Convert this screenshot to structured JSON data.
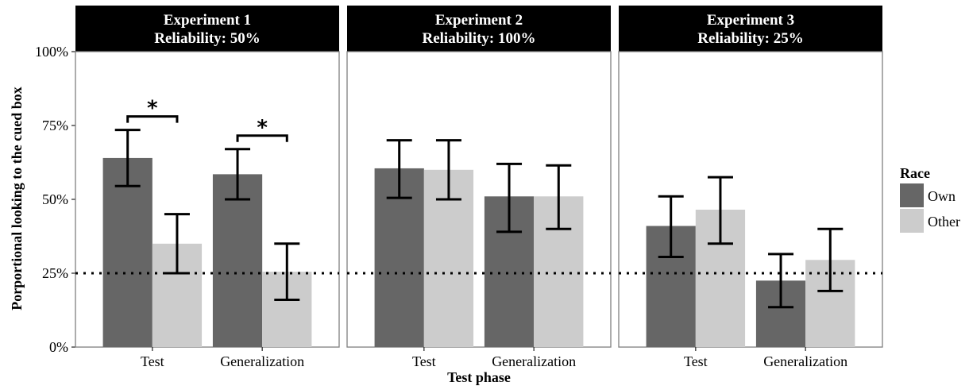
{
  "chart_data": {
    "type": "bar",
    "facet_by": "experiment",
    "panels": [
      {
        "title": "Experiment 1",
        "subtitle": "Reliability: 50%",
        "categories": [
          "Test",
          "Generalization"
        ],
        "series": [
          {
            "name": "Own",
            "values": [
              64,
              58.5
            ],
            "err_low": [
              54.5,
              50
            ],
            "err_high": [
              73.5,
              67
            ]
          },
          {
            "name": "Other",
            "values": [
              35,
              25.5
            ],
            "err_low": [
              25,
              16
            ],
            "err_high": [
              45,
              35
            ]
          }
        ],
        "significance": [
          {
            "category": "Test",
            "label": "*"
          },
          {
            "category": "Generalization",
            "label": "*"
          }
        ]
      },
      {
        "title": "Experiment 2",
        "subtitle": "Reliability: 100%",
        "categories": [
          "Test",
          "Generalization"
        ],
        "series": [
          {
            "name": "Own",
            "values": [
              60.5,
              51
            ],
            "err_low": [
              50.5,
              39
            ],
            "err_high": [
              70,
              62
            ]
          },
          {
            "name": "Other",
            "values": [
              60,
              51
            ],
            "err_low": [
              50,
              40
            ],
            "err_high": [
              70,
              61.5
            ]
          }
        ],
        "significance": []
      },
      {
        "title": "Experiment 3",
        "subtitle": "Reliability: 25%",
        "categories": [
          "Test",
          "Generalization"
        ],
        "series": [
          {
            "name": "Own",
            "values": [
              41,
              22.5
            ],
            "err_low": [
              30.5,
              13.5
            ],
            "err_high": [
              51,
              31.5
            ]
          },
          {
            "name": "Other",
            "values": [
              46.5,
              29.5
            ],
            "err_low": [
              35,
              19
            ],
            "err_high": [
              57.5,
              40
            ]
          }
        ],
        "significance": []
      }
    ],
    "xlabel": "Test phase",
    "ylabel": "Porportional looking to the cued box",
    "ylim": [
      0,
      100
    ],
    "yticks": [
      0,
      25,
      50,
      75,
      100
    ],
    "ytick_labels": [
      "0%",
      "25%",
      "50%",
      "75%",
      "100%"
    ],
    "reference_line": {
      "y": 25,
      "style": "dotted"
    },
    "legend": {
      "title": "Race",
      "position": "right",
      "entries": [
        {
          "name": "Own",
          "color": "#666666"
        },
        {
          "name": "Other",
          "color": "#cccccc"
        }
      ]
    },
    "grid": false
  }
}
